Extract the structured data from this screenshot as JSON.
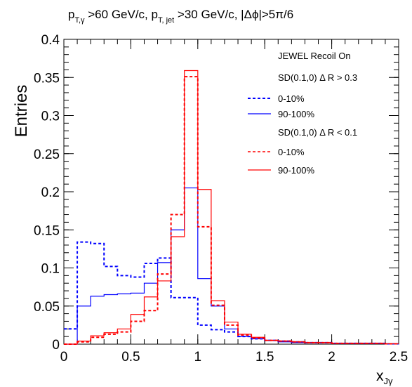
{
  "chart_data": {
    "type": "line",
    "drawstyle": "step-histogram",
    "title_parts": {
      "p": "p",
      "sub_gamma": "T,γ",
      "mid1": " >60 GeV/c, p",
      "sub_jet": "T, jet",
      "tail": " >30 GeV/c, |Δϕ|>5π/6"
    },
    "ylabel": "Entries",
    "xlabel": "x",
    "xlabel_sub": "Jγ",
    "xlim": [
      0,
      2.5
    ],
    "ylim": [
      0,
      0.4
    ],
    "xticks": [
      0,
      0.5,
      1,
      1.5,
      2,
      2.5
    ],
    "xtick_labels": [
      "0",
      "0.5",
      "1",
      "1.5",
      "2",
      "2.5"
    ],
    "yticks": [
      0,
      0.05,
      0.1,
      0.15,
      0.2,
      0.25,
      0.3,
      0.35,
      0.4
    ],
    "ytick_labels": [
      "0",
      "0.05",
      "0.1",
      "0.15",
      "0.2",
      "0.25",
      "0.3",
      "0.35",
      "0.4"
    ],
    "grid": false,
    "legend": {
      "placement": "top-right",
      "header1": "JEWEL  Recoil On",
      "header2": "SD(0.1,0) Δ R > 0.3",
      "header3": "SD(0.1,0) Δ R < 0.1"
    },
    "bin_edges": [
      0,
      0.1,
      0.2,
      0.3,
      0.4,
      0.5,
      0.6,
      0.7,
      0.8,
      0.9,
      1.0,
      1.1,
      1.2,
      1.3,
      1.4,
      1.5,
      1.6,
      1.7,
      1.8,
      1.9,
      2.0,
      2.1,
      2.2,
      2.3,
      2.4,
      2.5
    ],
    "series": [
      {
        "name": "0-10%",
        "color": "#0000ff",
        "dashed": true,
        "values": [
          0.02,
          0.134,
          0.132,
          0.102,
          0.09,
          0.088,
          0.106,
          0.113,
          0.061,
          0.061,
          0.025,
          0.019,
          0.016,
          0.01,
          0.007,
          0.005,
          0.004,
          0.003,
          0.002,
          0.002,
          0.001,
          0.001,
          0.001,
          0.001,
          0.0005
        ]
      },
      {
        "name": "90-100%",
        "color": "#0000ff",
        "dashed": false,
        "values": [
          0.0,
          0.05,
          0.063,
          0.065,
          0.066,
          0.067,
          0.08,
          0.107,
          0.15,
          0.205,
          0.086,
          0.05,
          0.02,
          0.01,
          0.007,
          0.005,
          0.003,
          0.002,
          0.002,
          0.002,
          0.001,
          0.001,
          0.001,
          0.001,
          0.0005
        ]
      },
      {
        "name": "0-10%",
        "color": "#ff0000",
        "dashed": true,
        "values": [
          0.0,
          0.003,
          0.009,
          0.013,
          0.016,
          0.03,
          0.044,
          0.092,
          0.17,
          0.351,
          0.154,
          0.051,
          0.025,
          0.012,
          0.008,
          0.005,
          0.004,
          0.003,
          0.002,
          0.002,
          0.001,
          0.001,
          0.001,
          0.001,
          0.0005
        ]
      },
      {
        "name": "90-100%",
        "color": "#ff0000",
        "dashed": false,
        "values": [
          0.0,
          0.004,
          0.011,
          0.015,
          0.02,
          0.039,
          0.062,
          0.083,
          0.141,
          0.359,
          0.203,
          0.057,
          0.029,
          0.013,
          0.009,
          0.005,
          0.004,
          0.003,
          0.002,
          0.002,
          0.001,
          0.001,
          0.001,
          0.001,
          0.0005
        ]
      }
    ]
  }
}
